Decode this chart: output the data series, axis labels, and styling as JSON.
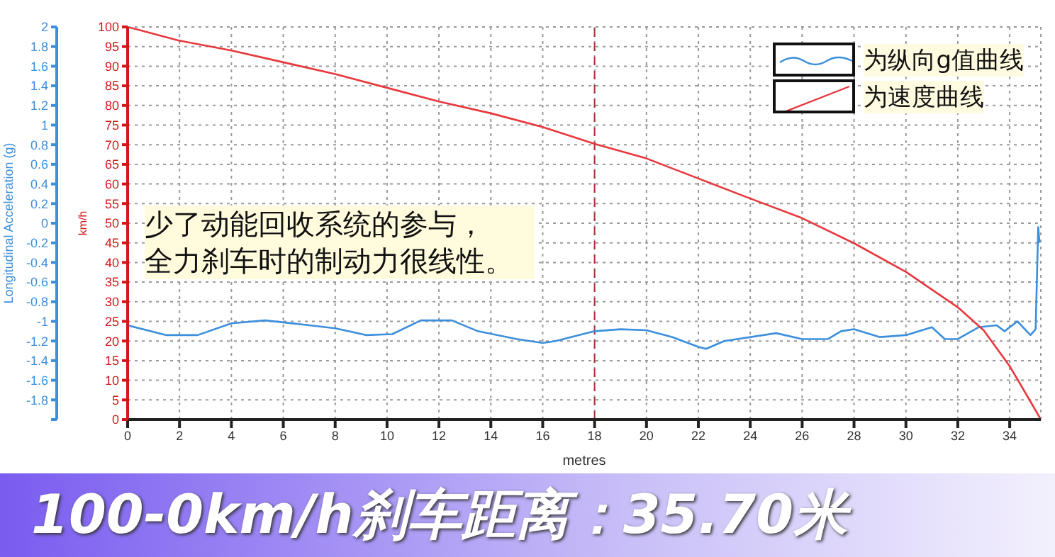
{
  "chart_data": {
    "type": "line",
    "title": "100-0km/h刹车距离：35.70米",
    "xlabel": "metres",
    "ylabel": "km/h",
    "y2label": "Longitudinal Acceleration (g)",
    "annotations": [
      "少了动能回收系统的参与，全力刹车时的制动力很线性。"
    ],
    "series": [
      {
        "name": "为纵向g值曲线",
        "color": "#3c8fdc",
        "axis": "y2",
        "x": [
          0,
          1.5,
          2.7,
          4,
          5.3,
          6,
          7,
          8,
          9.2,
          10.2,
          11.3,
          12.5,
          13.5,
          15,
          16,
          16.5,
          18,
          19,
          20,
          21,
          22,
          22.3,
          23,
          25,
          26,
          27,
          27.5,
          28,
          29,
          30,
          31,
          31.5,
          32,
          32.8,
          33.5,
          33.8,
          34.3,
          34.8,
          35.0,
          35.1,
          35.15
        ],
        "values": [
          -1.04,
          -1.14,
          -1.14,
          -1.02,
          -0.99,
          -1.01,
          -1.04,
          -1.07,
          -1.14,
          -1.13,
          -0.99,
          -0.99,
          -1.1,
          -1.18,
          -1.22,
          -1.2,
          -1.1,
          -1.08,
          -1.09,
          -1.16,
          -1.26,
          -1.28,
          -1.2,
          -1.12,
          -1.18,
          -1.18,
          -1.1,
          -1.08,
          -1.16,
          -1.14,
          -1.06,
          -1.18,
          -1.18,
          -1.06,
          -1.04,
          -1.1,
          -1.0,
          -1.14,
          -1.08,
          -0.04,
          -0.2
        ]
      },
      {
        "name": "为速度曲线",
        "color": "#e8383d",
        "x": [
          0,
          2,
          4,
          6,
          8,
          10,
          12,
          14,
          16,
          18,
          20,
          22,
          24,
          26,
          28,
          30,
          32,
          33,
          34,
          34.8,
          35.2
        ],
        "values": [
          100,
          96.5,
          94,
          91,
          88,
          84.5,
          81,
          78,
          74.5,
          70.2,
          66.5,
          61.4,
          56.3,
          51.3,
          44.9,
          37.6,
          28.6,
          22.7,
          13.6,
          4.6,
          0
        ]
      }
    ],
    "xlim": [
      0,
      35.2
    ],
    "xticks": [
      0,
      2,
      4,
      6,
      8,
      10,
      12,
      14,
      16,
      18,
      20,
      22,
      24,
      26,
      28,
      30,
      32,
      34
    ],
    "ylim": [
      0,
      100
    ],
    "yticks": [
      0,
      5,
      10,
      15,
      20,
      25,
      30,
      35,
      40,
      45,
      50,
      55,
      60,
      65,
      70,
      75,
      80,
      85,
      90,
      95,
      100
    ],
    "y2lim": [
      -2,
      2
    ],
    "y2ticks": [
      {
        "value": -2,
        "label": null
      },
      -1.8,
      -1.6,
      -1.4,
      -1.2,
      -1,
      -0.8,
      -0.6,
      -0.4,
      -0.2,
      0,
      0.2,
      0.4,
      0.6,
      0.8,
      1,
      1.2,
      1.4,
      1.6,
      1.8,
      2
    ],
    "ref_lines": [
      {
        "axis": "x",
        "value": 18,
        "color": "#b03040",
        "line_style": "dashed"
      }
    ],
    "grid": true,
    "legend": "top right",
    "marker": "none",
    "line_style": "solid"
  }
}
